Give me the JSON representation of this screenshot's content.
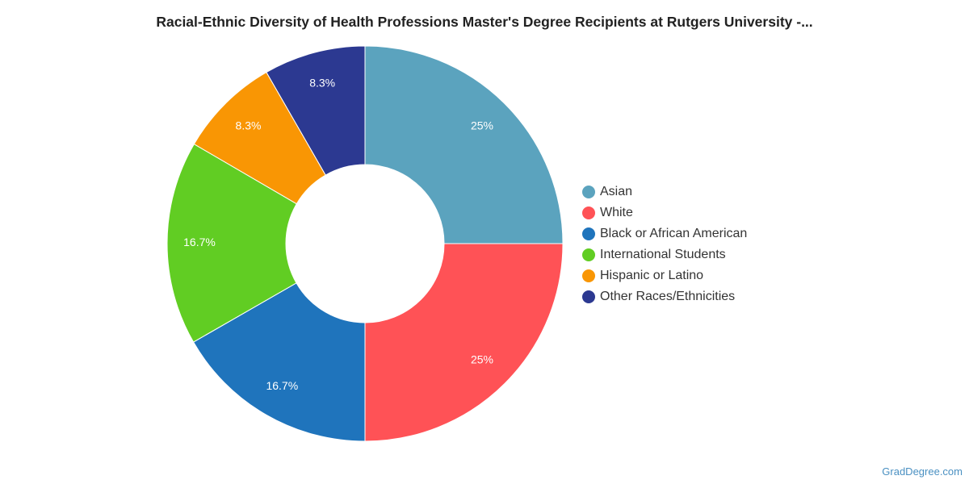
{
  "chart_data": {
    "type": "pie",
    "subtype": "donut",
    "title": "Racial-Ethnic Diversity of Health Professions Master's Degree Recipients at Rutgers University -...",
    "categories": [
      "Asian",
      "White",
      "Black or African American",
      "International Students",
      "Hispanic or Latino",
      "Other Races/Ethnicities"
    ],
    "values": [
      25,
      25,
      16.7,
      16.7,
      8.3,
      8.3
    ],
    "data_labels": [
      "25%",
      "25%",
      "16.7%",
      "16.7%",
      "8.3%",
      "8.3%"
    ],
    "colors": [
      "#5ba3be",
      "#ff5256",
      "#1f74bc",
      "#61cd23",
      "#f99604",
      "#2c3991"
    ],
    "legend_position": "right"
  },
  "watermark": "GradDegree.com"
}
